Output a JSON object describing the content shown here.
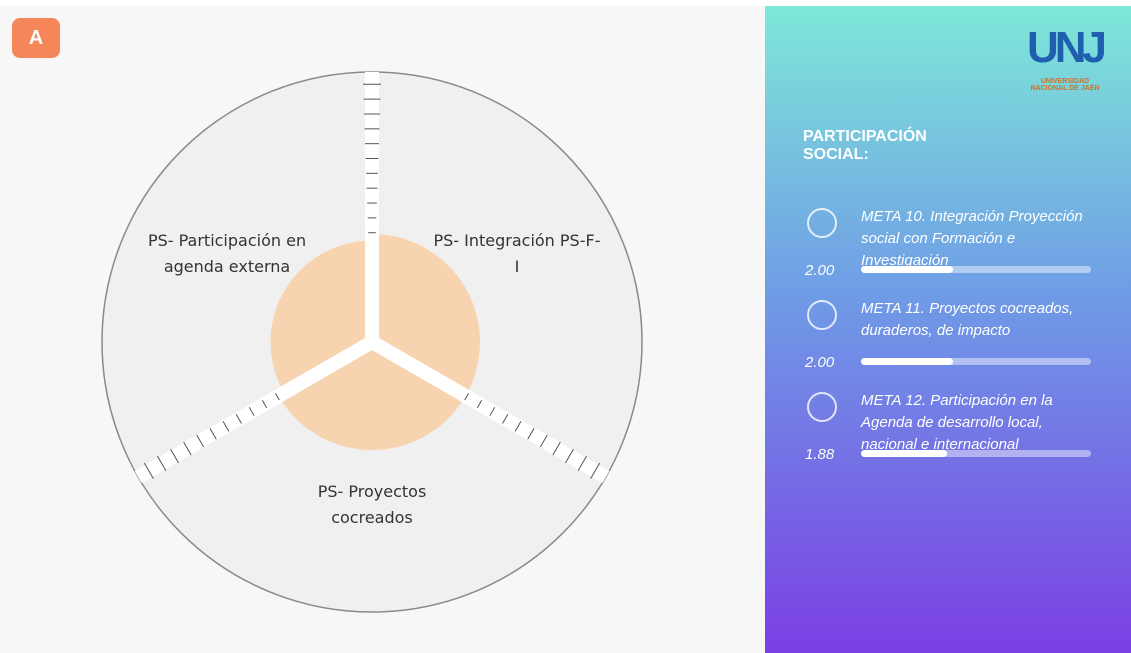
{
  "badge": "A",
  "logo": {
    "mark": "UNJ",
    "text": "UNIVERSIDAD NACIONAL DE JAÉN"
  },
  "panel": {
    "title": "PARTICIPACIÓN SOCIAL:",
    "items": [
      {
        "label": "META 10. Integración Proyección social con Formación e Investigación"
      },
      {
        "label": "META 11. Proyectos cocreados, duraderos, de impacto"
      },
      {
        "label": "META 12. Participación en la Agenda de desarrollo local, nacional e internacional"
      }
    ]
  },
  "chart_data": {
    "type": "polar",
    "categories": [
      "PS- Integración PS-F-I",
      "PS- Proyectos cocreados",
      "PS- Participación en agenda externa"
    ],
    "values": [
      2.0,
      2.0,
      1.88
    ],
    "value_labels": [
      "2.00",
      "2.00",
      "1.88"
    ],
    "rlim": [
      0,
      5
    ],
    "color": "#f8d3b0",
    "background_color": "#f0f0f0"
  }
}
